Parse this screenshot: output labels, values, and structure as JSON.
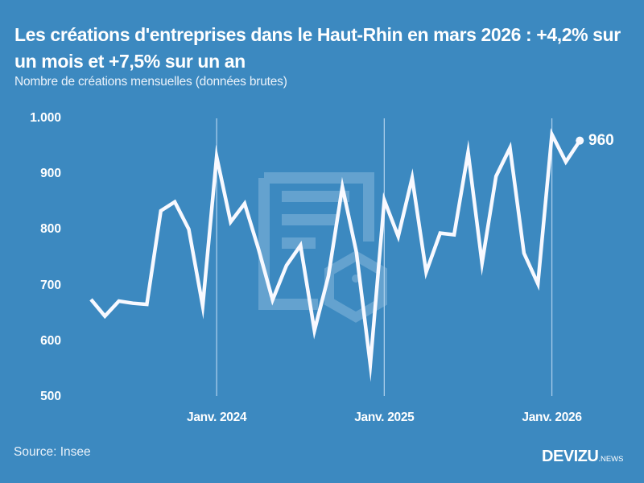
{
  "header": {
    "title": "Les créations d'entreprises dans le Haut-Rhin en mars 2026 : +4,2% sur un mois et +7,5% sur un an",
    "subtitle": "Nombre de créations mensuelles (données brutes)"
  },
  "axis": {
    "y_ticks": [
      "1.000",
      "900",
      "800",
      "700",
      "600",
      "500"
    ],
    "x_ticks": [
      "Janv. 2024",
      "Janv. 2025",
      "Janv. 2026"
    ]
  },
  "last_point_label": "960",
  "footer": {
    "source": "Source: Insee",
    "logo_main": "DEVIZU",
    "logo_suffix": ".NEWS"
  },
  "colors": {
    "background": "#3c89c0",
    "line": "#f8f9ff",
    "gridline": "#a9cdea",
    "watermark": "#64a2cf"
  },
  "chart_data": {
    "type": "line",
    "title": "Les créations d'entreprises dans le Haut-Rhin en mars 2026 : +4,2% sur un mois et +7,5% sur un an",
    "subtitle": "Nombre de créations mensuelles (données brutes)",
    "xlabel": "",
    "ylabel": "",
    "ylim": [
      500,
      1000
    ],
    "yticks": [
      500,
      600,
      700,
      800,
      900,
      1000
    ],
    "xticks": [
      "Janv. 2024",
      "Janv. 2025",
      "Janv. 2026"
    ],
    "grid": "vertical lines at each January",
    "x": [
      "2023-04",
      "2023-05",
      "2023-06",
      "2023-07",
      "2023-08",
      "2023-09",
      "2023-10",
      "2023-11",
      "2023-12",
      "2024-01",
      "2024-02",
      "2024-03",
      "2024-04",
      "2024-05",
      "2024-06",
      "2024-07",
      "2024-08",
      "2024-09",
      "2024-10",
      "2024-11",
      "2024-12",
      "2025-01",
      "2025-02",
      "2025-03",
      "2025-04",
      "2025-05",
      "2025-06",
      "2025-07",
      "2025-08",
      "2025-09",
      "2025-10",
      "2025-11",
      "2025-12",
      "2026-01",
      "2026-02",
      "2026-03"
    ],
    "series": [
      {
        "name": "Créations d'entreprises (Haut-Rhin)",
        "values": [
          675,
          645,
          672,
          668,
          666,
          834,
          850,
          801,
          663,
          931,
          814,
          847,
          765,
          674,
          736,
          772,
          619,
          717,
          877,
          760,
          558,
          853,
          788,
          893,
          724,
          794,
          791,
          939,
          740,
          896,
          947,
          758,
          703,
          971,
          922,
          960
        ]
      }
    ],
    "annotations": [
      {
        "x": "2026-03",
        "y": 960,
        "text": "960"
      }
    ],
    "source": "Source: Insee"
  }
}
